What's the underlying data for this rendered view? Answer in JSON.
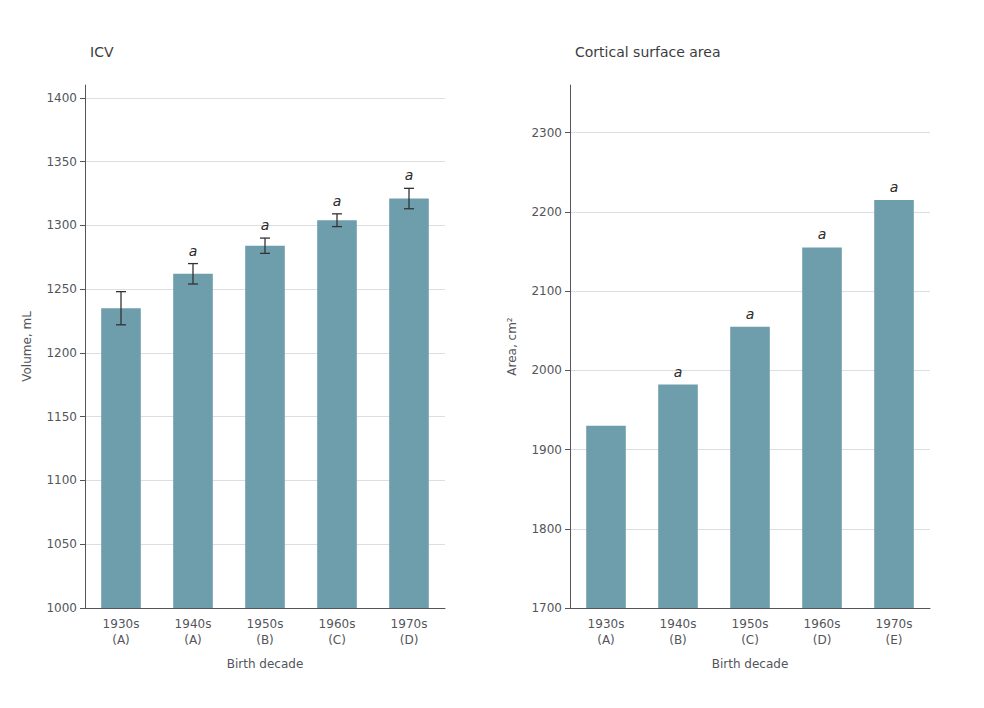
{
  "chart_data": [
    {
      "type": "bar",
      "title": "ICV",
      "xlabel": "Birth decade",
      "ylabel": "Volume, mL",
      "categories": [
        "1930s\n(A)",
        "1940s\n(A)",
        "1950s\n(B)",
        "1960s\n(C)",
        "1970s\n(D)"
      ],
      "values": [
        1235,
        1262,
        1284,
        1304,
        1321
      ],
      "errors": [
        13,
        8,
        6,
        5,
        8
      ],
      "annotations": [
        null,
        "a",
        "a",
        "a",
        "a"
      ],
      "color": "#6e9dab",
      "ylim": [
        1000,
        1410
      ],
      "yticks": [
        1000,
        1050,
        1100,
        1150,
        1200,
        1250,
        1300,
        1350,
        1400
      ],
      "grid": true
    },
    {
      "type": "bar",
      "title": "Cortical surface area",
      "xlabel": "Birth decade",
      "ylabel": "Area, cm²",
      "categories": [
        "1930s\n(A)",
        "1940s\n(B)",
        "1950s\n(C)",
        "1960s\n(D)",
        "1970s\n(E)"
      ],
      "values": [
        1930,
        1982,
        2055,
        2155,
        2215
      ],
      "annotations": [
        null,
        "a",
        "a",
        "a",
        "a"
      ],
      "color": "#6e9dab",
      "ylim": [
        1700,
        2360
      ],
      "yticks": [
        1700,
        1800,
        1900,
        2000,
        2100,
        2200,
        2300
      ],
      "grid": true
    }
  ]
}
